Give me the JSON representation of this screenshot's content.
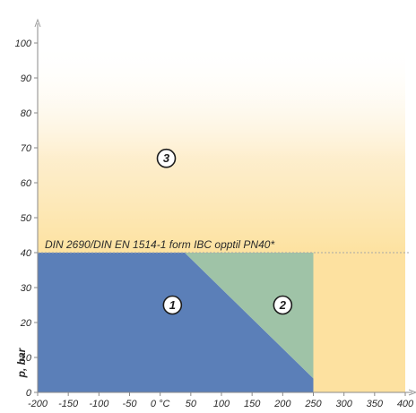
{
  "chart_data": {
    "type": "area",
    "title": "",
    "xlabel": "",
    "ylabel": "p, bar",
    "x_ticks": [
      -200,
      -150,
      -100,
      -50,
      0,
      50,
      100,
      150,
      200,
      250,
      300,
      350,
      400
    ],
    "x_tick_labels": [
      "-200",
      "-150",
      "-100",
      "-50",
      "0 °C",
      "50",
      "100",
      "150",
      "200",
      "250",
      "300",
      "350",
      "400"
    ],
    "y_ticks": [
      0,
      10,
      20,
      30,
      40,
      50,
      60,
      70,
      80,
      90,
      100
    ],
    "xlim": [
      -200,
      400
    ],
    "ylim": [
      0,
      100
    ],
    "grid": false,
    "reference_line": {
      "y": 40,
      "label": "DIN 2690/DIN EN 1514-1  form IBC opptil PN40*"
    },
    "zones": [
      {
        "id": "1",
        "label": "1",
        "color": "#5b7fb8",
        "polygon": [
          [
            -200,
            0
          ],
          [
            -200,
            40
          ],
          [
            40,
            40
          ],
          [
            250,
            4
          ],
          [
            250,
            0
          ]
        ],
        "label_pos": [
          20,
          25
        ]
      },
      {
        "id": "2",
        "label": "2",
        "color": "#9fc3a7",
        "polygon": [
          [
            40,
            40
          ],
          [
            250,
            40
          ],
          [
            250,
            4
          ]
        ],
        "label_pos": [
          200,
          25
        ]
      },
      {
        "id": "3",
        "label": "3",
        "color": "#fde7a6",
        "polygon": [
          [
            -200,
            40
          ],
          [
            400,
            40
          ],
          [
            400,
            100
          ],
          [
            -200,
            100
          ]
        ],
        "label_pos": [
          10,
          67
        ]
      }
    ],
    "right_region": {
      "x_from": 250,
      "x_to": 400,
      "y_from": 0,
      "y_to": 40,
      "color": "#fde1a0"
    }
  }
}
